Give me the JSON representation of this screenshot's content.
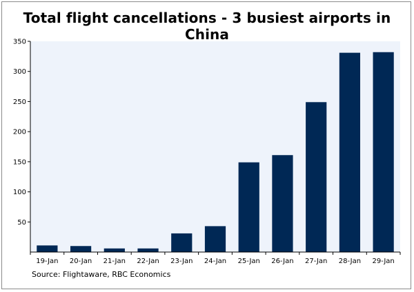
{
  "chart_data": {
    "type": "bar",
    "title": "Total flight cancellations - 3 busiest airports in China",
    "xlabel": "",
    "ylabel": "",
    "categories": [
      "19-Jan",
      "20-Jan",
      "21-Jan",
      "22-Jan",
      "23-Jan",
      "24-Jan",
      "25-Jan",
      "26-Jan",
      "27-Jan",
      "28-Jan",
      "29-Jan"
    ],
    "values": [
      11,
      10,
      6,
      6,
      31,
      43,
      149,
      161,
      249,
      331,
      332
    ],
    "ylim": [
      0,
      350
    ],
    "yticks": [
      "50",
      "100",
      "150",
      "200",
      "250",
      "300",
      "350"
    ],
    "grid": false,
    "legend": "none",
    "colors": {
      "bar": "#002855",
      "plot_background": "#EEF3FB",
      "axis": "#000000"
    }
  },
  "source_note": "Source: Flightaware, RBC Economics"
}
